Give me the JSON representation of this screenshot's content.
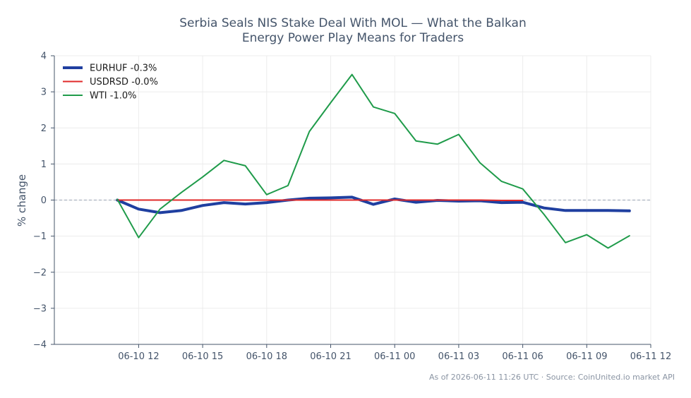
{
  "chart_data": {
    "type": "line",
    "title": "Serbia Seals NIS Stake Deal With MOL — What the Balkan Energy Power Play Means for Traders",
    "title_lines": [
      "Serbia Seals NIS Stake Deal With MOL — What the Balkan",
      "Energy Power Play Means for Traders"
    ],
    "xlabel": "",
    "ylabel": "% change",
    "x_tick_labels": [
      "06-10 12",
      "06-10 15",
      "06-10 18",
      "06-10 21",
      "06-11 00",
      "06-11 03",
      "06-11 06",
      "06-11 09",
      "06-11 12"
    ],
    "x_tick_hours": [
      12,
      15,
      18,
      21,
      24,
      27,
      30,
      33,
      36
    ],
    "x_range_hours": [
      8.05,
      36.0
    ],
    "ylim": [
      -4,
      4
    ],
    "y_ticks": [
      4,
      3,
      2,
      1,
      0,
      -1,
      -2,
      -3,
      -4
    ],
    "y_tick_labels": [
      "4",
      "3",
      "2",
      "1",
      "0",
      "−1",
      "−2",
      "−3",
      "−4"
    ],
    "zero_line": true,
    "grid": true,
    "legend_position": "upper-left",
    "series": [
      {
        "name": "EURHUF -0.3%",
        "color": "#1f3fa0",
        "linewidth": 4,
        "x_hours": [
          11,
          12,
          13,
          14,
          15,
          16,
          17,
          18,
          19,
          20,
          21,
          22,
          23,
          24,
          25,
          26,
          27,
          28,
          29,
          30,
          31,
          32,
          33,
          34,
          35
        ],
        "y": [
          0.0,
          -0.25,
          -0.35,
          -0.29,
          -0.15,
          -0.07,
          -0.11,
          -0.07,
          0.0,
          0.05,
          0.06,
          0.08,
          -0.12,
          0.03,
          -0.06,
          -0.01,
          -0.03,
          -0.02,
          -0.07,
          -0.06,
          -0.22,
          -0.29,
          -0.29,
          -0.29,
          -0.3
        ]
      },
      {
        "name": "USDRSD -0.0%",
        "color": "#e02a2a",
        "linewidth": 2,
        "x_hours": [
          11,
          12,
          13,
          14,
          15,
          16,
          17,
          18,
          19,
          20,
          21,
          22,
          23,
          24,
          25,
          26,
          27,
          28,
          29,
          30
        ],
        "y": [
          0.0,
          0.0,
          0.0,
          0.0,
          0.0,
          0.0,
          0.0,
          0.0,
          0.0,
          0.0,
          0.0,
          0.0,
          0.0,
          0.0,
          0.0,
          0.0,
          0.0,
          0.0,
          -0.01,
          -0.01
        ]
      },
      {
        "name": "WTI -1.0%",
        "color": "#1f9b4a",
        "linewidth": 2,
        "x_hours": [
          11,
          12,
          13,
          14,
          15,
          16,
          17,
          18,
          19,
          20,
          21,
          22,
          23,
          24,
          25,
          26,
          27,
          28,
          29,
          30,
          31,
          32,
          33,
          34,
          35
        ],
        "y": [
          0.02,
          -1.04,
          -0.25,
          0.21,
          0.64,
          1.1,
          0.95,
          0.15,
          0.4,
          1.9,
          2.7,
          3.48,
          2.58,
          2.4,
          1.64,
          1.55,
          1.82,
          1.03,
          0.52,
          0.31,
          -0.4,
          -1.18,
          -0.96,
          -1.33,
          -0.99
        ]
      }
    ]
  },
  "footer": "As of 2026-06-11 11:26 UTC · Source: CoinUnited.io market API"
}
